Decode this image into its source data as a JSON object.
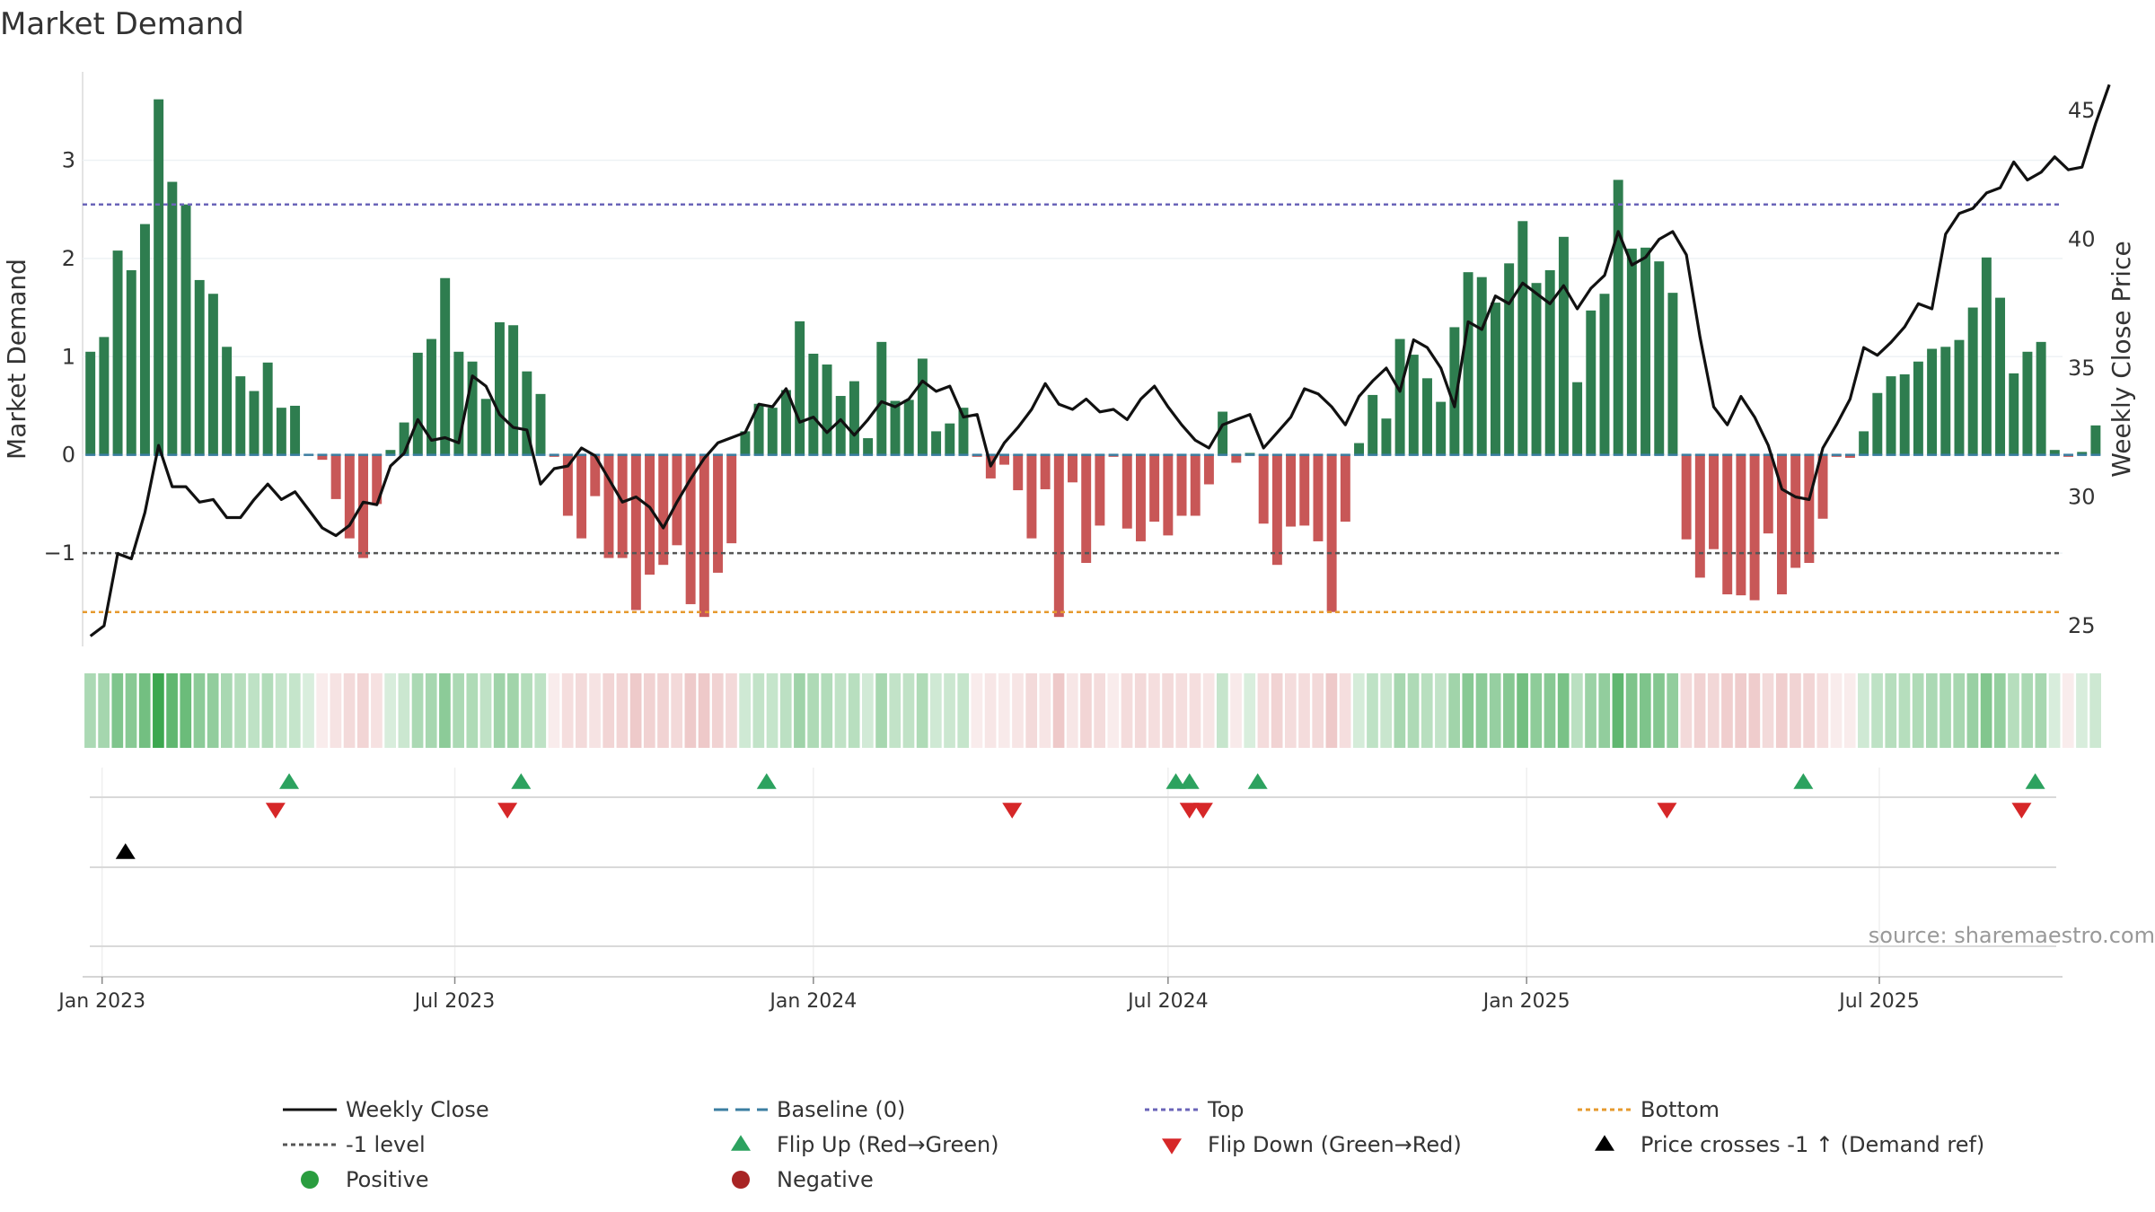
{
  "chart_data": {
    "type": "bar",
    "title": "Market Demand",
    "ylabel": "Market Demand",
    "y2label": "Weekly Close Price",
    "ylim": [
      -1.95,
      3.9
    ],
    "y2lim": [
      24.2,
      46.5
    ],
    "yticks": [
      -1,
      0,
      1,
      2,
      3
    ],
    "yticklabels": [
      "−1",
      "0",
      "1",
      "2",
      "3"
    ],
    "y2ticks": [
      25,
      30,
      35,
      40,
      45
    ],
    "y2ticklabels": [
      "25",
      "30",
      "35",
      "40",
      "45"
    ],
    "levels": {
      "top": 2.55,
      "bottom": -1.6,
      "minus_one": -1,
      "baseline": 0
    },
    "x_start": "2022-12-26",
    "x_step_days": 7,
    "xlim": [
      "2022-12-22",
      "2025-10-03"
    ],
    "xticks": [
      {
        "date": "2023-01-01",
        "label": "Jan 2023"
      },
      {
        "date": "2023-07-01",
        "label": "Jul 2023"
      },
      {
        "date": "2024-01-01",
        "label": "Jan 2024"
      },
      {
        "date": "2024-07-01",
        "label": "Jul 2024"
      },
      {
        "date": "2025-01-01",
        "label": "Jan 2025"
      },
      {
        "date": "2025-07-01",
        "label": "Jul 2025"
      }
    ],
    "series": [
      {
        "name": "Market Demand",
        "values": [
          1.05,
          1.2,
          2.08,
          1.88,
          2.35,
          3.62,
          2.78,
          2.55,
          1.78,
          1.64,
          1.1,
          0.8,
          0.65,
          0.94,
          0.48,
          0.5,
          0,
          -0.05,
          -0.45,
          -0.85,
          -1.05,
          -0.5,
          0.05,
          0.33,
          1.04,
          1.18,
          1.8,
          1.05,
          0.95,
          0.57,
          1.35,
          1.32,
          0.85,
          0.62,
          -0.02,
          -0.62,
          -0.85,
          -0.42,
          -1.05,
          -1.05,
          -1.58,
          -1.22,
          -1.12,
          -0.92,
          -1.52,
          -1.65,
          -1.2,
          -0.9,
          0.24,
          0.52,
          0.48,
          0.66,
          1.36,
          1.03,
          0.92,
          0.6,
          0.75,
          0.17,
          1.15,
          0.55,
          0.56,
          0.98,
          0.24,
          0.32,
          0.48,
          -0.02,
          -0.24,
          -0.1,
          -0.36,
          -0.85,
          -0.35,
          -1.65,
          -0.28,
          -1.1,
          -0.72,
          -0.02,
          -0.75,
          -0.88,
          -0.68,
          -0.82,
          -0.62,
          -0.62,
          -0.3,
          0.44,
          -0.08,
          0.02,
          -0.7,
          -1.12,
          -0.73,
          -0.72,
          -0.88,
          -1.6,
          -0.68,
          0.12,
          0.61,
          0.37,
          1.18,
          1.02,
          0.78,
          0.54,
          1.3,
          1.86,
          1.81,
          1.55,
          1.95,
          2.38,
          1.75,
          1.88,
          2.22,
          0.74,
          1.47,
          1.64,
          2.8,
          2.1,
          2.11,
          1.97,
          1.65,
          -0.86,
          -1.25,
          -0.96,
          -1.42,
          -1.43,
          -1.48,
          -0.8,
          -1.42,
          -1.15,
          -1.1,
          -0.65,
          -0.02,
          -0.03,
          0.24,
          0.63,
          0.8,
          0.82,
          0.95,
          1.08,
          1.1,
          1.17,
          1.5,
          2.01,
          1.6,
          0.83,
          1.05,
          1.15,
          0.05,
          -0.02,
          0.03,
          0.3
        ]
      },
      {
        "name": "Weekly Close",
        "axis": "right",
        "values": [
          24.6,
          25.0,
          27.8,
          27.6,
          29.4,
          32.0,
          30.4,
          30.4,
          29.8,
          29.9,
          29.2,
          29.2,
          29.9,
          30.5,
          29.9,
          30.2,
          29.5,
          28.8,
          28.5,
          28.9,
          29.8,
          29.7,
          31.2,
          31.7,
          33.0,
          32.2,
          32.3,
          32.1,
          34.7,
          34.3,
          33.2,
          32.7,
          32.6,
          30.5,
          31.1,
          31.2,
          31.9,
          31.6,
          30.7,
          29.8,
          30.0,
          29.6,
          28.8,
          29.8,
          30.7,
          31.5,
          32.1,
          32.3,
          32.5,
          33.6,
          33.5,
          34.2,
          32.9,
          33.1,
          32.5,
          33.0,
          32.4,
          33.0,
          33.7,
          33.5,
          33.8,
          34.5,
          34.1,
          34.3,
          33.1,
          33.2,
          31.2,
          32.1,
          32.7,
          33.4,
          34.4,
          33.6,
          33.4,
          33.8,
          33.3,
          33.4,
          33.0,
          33.8,
          34.3,
          33.5,
          32.8,
          32.2,
          31.9,
          32.8,
          33.0,
          33.2,
          31.9,
          32.5,
          33.1,
          34.2,
          34.0,
          33.5,
          32.8,
          33.9,
          34.5,
          35.0,
          34.1,
          36.1,
          35.8,
          35.0,
          33.5,
          36.8,
          36.5,
          37.8,
          37.5,
          38.3,
          37.9,
          37.5,
          38.2,
          37.3,
          38.1,
          38.6,
          40.3,
          39.0,
          39.3,
          40.0,
          40.3,
          39.4,
          36.2,
          33.5,
          32.8,
          33.9,
          33.1,
          32.0,
          30.3,
          30.0,
          29.9,
          31.9,
          32.8,
          33.8,
          35.8,
          35.5,
          36.0,
          36.6,
          37.5,
          37.3,
          40.2,
          41.0,
          41.2,
          41.8,
          42.0,
          43.0,
          42.3,
          42.6,
          43.2,
          42.7,
          42.8,
          44.5,
          46.0
        ]
      }
    ],
    "signals": {
      "flip_up": [
        "2023-04-07",
        "2023-08-04",
        "2023-12-08",
        "2024-07-05",
        "2024-07-12",
        "2024-08-16",
        "2025-05-23",
        "2025-09-19"
      ],
      "flip_down": [
        "2023-03-31",
        "2023-07-28",
        "2024-04-12",
        "2024-07-12",
        "2024-07-19",
        "2025-03-14",
        "2025-09-12"
      ],
      "price_cross": [
        "2023-01-13"
      ]
    },
    "source": "source: sharemaestro.com",
    "legend": [
      {
        "label": "Weekly Close",
        "symbol": "line",
        "color": "#111111"
      },
      {
        "label": "Baseline (0)",
        "symbol": "dash",
        "color": "#3b7ea1"
      },
      {
        "label": "Top",
        "symbol": "dot",
        "color": "#6a64b8"
      },
      {
        "label": "Bottom",
        "symbol": "dot",
        "color": "#e69a2e"
      },
      {
        "label": "-1 level",
        "symbol": "dot",
        "color": "#555555"
      },
      {
        "label": "Flip Up (Red→Green)",
        "symbol": "tri-up",
        "color": "#2ca25f"
      },
      {
        "label": "Flip Down (Green→Red)",
        "symbol": "tri-down",
        "color": "#d62728"
      },
      {
        "label": "Price crosses -1 ↑ (Demand ref)",
        "symbol": "tri-up",
        "color": "#000000"
      },
      {
        "label": "Positive",
        "symbol": "circle",
        "color": "#2a9d3f"
      },
      {
        "label": "Negative",
        "symbol": "circle",
        "color": "#a82424"
      }
    ],
    "colors": {
      "positive_bar": "#2e7d4f",
      "negative_bar": "#c85757",
      "price_line": "#111111",
      "baseline": "#3b7ea1",
      "top_line": "#6a64b8",
      "bottom_line": "#e69a2e",
      "minus_one_line": "#555555"
    }
  }
}
